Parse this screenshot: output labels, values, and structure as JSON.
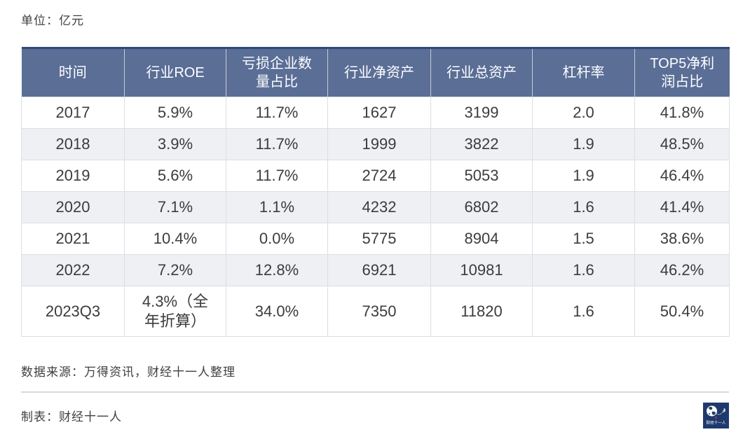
{
  "page": {
    "unit_label": "单位：亿元",
    "source_note": "数据来源：万得资讯，财经十一人整理",
    "credit_note": "制表：财经十一人",
    "logo_text": "财经十一人"
  },
  "colors": {
    "header_bg": "#5a6e96",
    "header_top_border": "#2e4a78",
    "alt_row_bg": "#eef0f4",
    "body_text": "#3c3c3c",
    "grid_border": "#dbdee3",
    "logo_bg": "#1e3a6d",
    "logo_red": "#cc3344"
  },
  "chart_data": {
    "type": "table",
    "unit": "亿元",
    "columns": [
      "时间",
      "行业ROE",
      "亏损企业数量占比",
      "行业净资产",
      "行业总资产",
      "杠杆率",
      "TOP5净利润占比"
    ],
    "rows": [
      [
        "2017",
        "5.9%",
        "11.7%",
        "1627",
        "3199",
        "2.0",
        "41.8%"
      ],
      [
        "2018",
        "3.9%",
        "11.7%",
        "1999",
        "3822",
        "1.9",
        "48.5%"
      ],
      [
        "2019",
        "5.6%",
        "11.7%",
        "2724",
        "5053",
        "1.9",
        "46.4%"
      ],
      [
        "2020",
        "7.1%",
        "1.1%",
        "4232",
        "6802",
        "1.6",
        "41.4%"
      ],
      [
        "2021",
        "10.4%",
        "0.0%",
        "5775",
        "8904",
        "1.5",
        "38.6%"
      ],
      [
        "2022",
        "7.2%",
        "12.8%",
        "6921",
        "10981",
        "1.6",
        "46.2%"
      ],
      [
        "2023Q3",
        "4.3%（全年折算）",
        "34.0%",
        "7350",
        "11820",
        "1.6",
        "50.4%"
      ]
    ]
  }
}
